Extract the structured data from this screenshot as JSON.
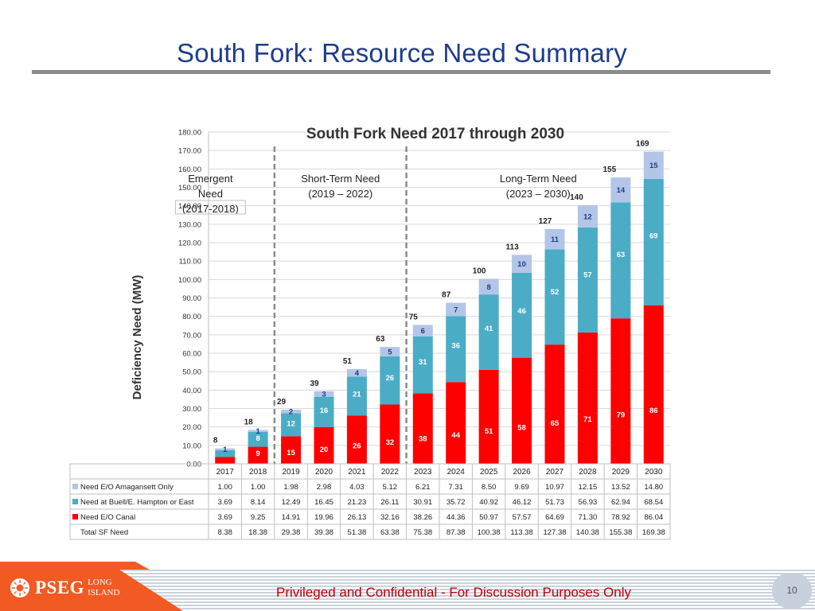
{
  "slide": {
    "title": "South Fork: Resource Need Summary",
    "footer_text": "Privileged and Confidential - For Discussion Purposes Only",
    "page_number": "10",
    "logo": {
      "brand": "PSEG",
      "line1": "LONG",
      "line2": "ISLAND"
    }
  },
  "colors": {
    "amagansett": "#b4c6e7",
    "buell": "#4bacc6",
    "canal": "#ff0000",
    "divider": "#8c8c8c",
    "title": "#1f3c88",
    "footer_orange": "#f15a22"
  },
  "chart_data": {
    "type": "bar",
    "stacked": true,
    "title": "South Fork Need 2017 through 2030",
    "ylabel": "Deficiency Need (MW)",
    "xlabel": "",
    "ylim": [
      0,
      180
    ],
    "ytick_step": 10,
    "grid": true,
    "categories": [
      "2017",
      "2018",
      "2019",
      "2020",
      "2021",
      "2022",
      "2023",
      "2024",
      "2025",
      "2026",
      "2027",
      "2028",
      "2029",
      "2030"
    ],
    "series": [
      {
        "name": "Need E/O Canal",
        "key": "canal",
        "values": [
          3.69,
          9.25,
          14.91,
          19.96,
          26.13,
          32.16,
          38.26,
          44.36,
          50.97,
          57.57,
          64.69,
          71.3,
          78.92,
          86.04
        ],
        "labels": [
          "",
          "9",
          "15",
          "20",
          "26",
          "32",
          "38",
          "44",
          "51",
          "58",
          "65",
          "71",
          "79",
          "86"
        ]
      },
      {
        "name": "Need at Buell/E. Hampton or East",
        "key": "buell",
        "values": [
          3.69,
          8.14,
          12.49,
          16.45,
          21.23,
          26.11,
          30.91,
          35.72,
          40.92,
          46.12,
          51.73,
          56.93,
          62.94,
          68.54
        ],
        "labels": [
          "",
          "8",
          "12",
          "16",
          "21",
          "26",
          "31",
          "36",
          "41",
          "46",
          "52",
          "57",
          "63",
          "69"
        ]
      },
      {
        "name": "Need E/O Amagansett Only",
        "key": "amagansett",
        "values": [
          1.0,
          1.0,
          1.98,
          2.98,
          4.03,
          5.12,
          6.21,
          7.31,
          8.5,
          9.69,
          10.97,
          12.15,
          13.52,
          14.8
        ],
        "labels": [
          "1",
          "1",
          "2",
          "3",
          "4",
          "5",
          "6",
          "7",
          "8",
          "10",
          "11",
          "12",
          "14",
          "15"
        ]
      }
    ],
    "totals": [
      8.38,
      18.38,
      29.38,
      39.38,
      51.38,
      63.38,
      75.38,
      87.38,
      100.38,
      113.38,
      127.38,
      140.38,
      155.38,
      169.38
    ],
    "total_labels": [
      "8",
      "18",
      "29",
      "39",
      "51",
      "63",
      "75",
      "87",
      "100",
      "113",
      "127",
      "140",
      "155",
      "169"
    ],
    "phases": [
      {
        "line1": "Emergent",
        "line2": "Need",
        "line3": "(2017-2018)",
        "start": "2017",
        "end": "2018"
      },
      {
        "line1": "Short-Term Need",
        "line2": "(2019 – 2022)",
        "line3": "",
        "start": "2019",
        "end": "2022"
      },
      {
        "line1": "Long-Term Need",
        "line2": "(2023 – 2030)",
        "line3": "",
        "start": "2023",
        "end": "2030"
      }
    ],
    "table": {
      "rows": [
        {
          "label": "Need E/O Amagansett Only",
          "key": "amagansett",
          "values": [
            "1.00",
            "1.00",
            "1.98",
            "2.98",
            "4.03",
            "5.12",
            "6.21",
            "7.31",
            "8.50",
            "9.69",
            "10.97",
            "12.15",
            "13.52",
            "14.80"
          ]
        },
        {
          "label": "Need at Buell/E. Hampton or East",
          "key": "buell",
          "values": [
            "3.69",
            "8.14",
            "12.49",
            "16.45",
            "21.23",
            "26.11",
            "30.91",
            "35.72",
            "40.92",
            "46.12",
            "51.73",
            "56.93",
            "62.94",
            "68.54"
          ]
        },
        {
          "label": "Need E/O Canal",
          "key": "canal",
          "values": [
            "3.69",
            "9.25",
            "14.91",
            "19.96",
            "26.13",
            "32.16",
            "38.26",
            "44.36",
            "50.97",
            "57.57",
            "64.69",
            "71.30",
            "78.92",
            "86.04"
          ]
        },
        {
          "label": "Total SF Need",
          "key": "",
          "values": [
            "8.38",
            "18.38",
            "29.38",
            "39.38",
            "51.38",
            "63.38",
            "75.38",
            "87.38",
            "100.38",
            "113.38",
            "127.38",
            "140.38",
            "155.38",
            "169.38"
          ]
        }
      ]
    }
  }
}
